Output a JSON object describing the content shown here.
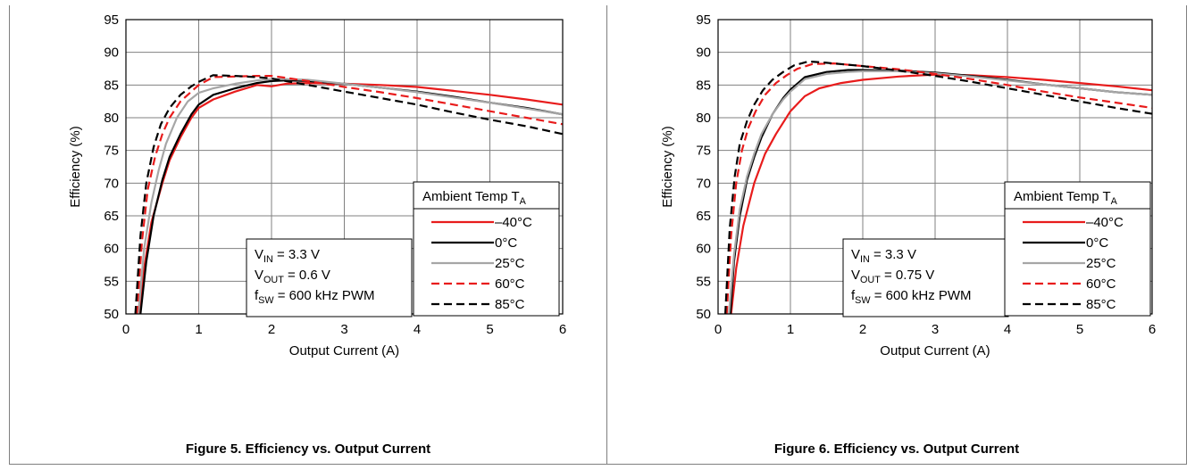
{
  "chart_data": [
    {
      "type": "line",
      "figure_caption": "Figure 5. Efficiency vs. Output Current",
      "xlabel": "Output Current (A)",
      "ylabel": "Efficiency (%)",
      "xlim": [
        0,
        6
      ],
      "ylim": [
        50,
        95
      ],
      "xticks": [
        "0",
        "1",
        "2",
        "3",
        "4",
        "5",
        "6"
      ],
      "yticks": [
        "50",
        "55",
        "60",
        "65",
        "70",
        "75",
        "80",
        "85",
        "90",
        "95"
      ],
      "grid": true,
      "legend_title": "Ambient Temp T",
      "legend_title_sub": "A",
      "legend_position": "bottom-right",
      "conditions": [
        {
          "main": "V",
          "sub": "IN",
          "rest": " = 3.3 V"
        },
        {
          "main": "V",
          "sub": "OUT",
          "rest": " = 0.6 V"
        },
        {
          "main": "f",
          "sub": "SW",
          "rest": " = 600 kHz PWM"
        }
      ],
      "series": [
        {
          "name": "–40°C",
          "color": "#e81c1c",
          "dash": "solid",
          "x": [
            0.18,
            0.25,
            0.35,
            0.5,
            0.6,
            0.75,
            0.9,
            1.0,
            1.2,
            1.5,
            1.8,
            2.0,
            2.2,
            2.5,
            3.0,
            3.5,
            4.0,
            4.5,
            5.0,
            5.5,
            6.0
          ],
          "y": [
            50,
            57,
            64,
            70,
            73.5,
            77,
            80,
            81.5,
            82.8,
            84,
            85,
            84.8,
            85.2,
            85.3,
            85.2,
            85,
            84.7,
            84.1,
            83.5,
            82.8,
            82
          ]
        },
        {
          "name": "0°C",
          "color": "#000000",
          "dash": "solid",
          "x": [
            0.2,
            0.28,
            0.38,
            0.5,
            0.6,
            0.75,
            0.9,
            1.0,
            1.2,
            1.5,
            1.8,
            2.0,
            2.2,
            2.5,
            3.0,
            3.5,
            4.0,
            4.5,
            5.0,
            5.5,
            6.0
          ],
          "y": [
            50,
            58,
            65,
            70.5,
            74,
            77.5,
            80.5,
            82,
            83.5,
            84.5,
            85.3,
            85.6,
            85.7,
            85.6,
            85.2,
            84.6,
            84,
            83.2,
            82.3,
            81.5,
            80.5
          ]
        },
        {
          "name": "25°C",
          "color": "#a6a6a6",
          "dash": "solid",
          "x": [
            0.17,
            0.25,
            0.35,
            0.45,
            0.55,
            0.7,
            0.85,
            1.0,
            1.2,
            1.5,
            1.8,
            2.0,
            2.2,
            2.5,
            3.0,
            3.5,
            4.0,
            4.5,
            5.0,
            5.5,
            6.0
          ],
          "y": [
            50,
            60,
            67,
            72,
            76,
            80,
            82.5,
            83.8,
            84.5,
            85.2,
            85.7,
            85.9,
            85.9,
            85.8,
            85.2,
            84.6,
            83.9,
            83.1,
            82.3,
            81.4,
            80.5
          ]
        },
        {
          "name": "60°C",
          "color": "#e81c1c",
          "dash": "dashed",
          "x": [
            0.15,
            0.22,
            0.3,
            0.4,
            0.5,
            0.6,
            0.75,
            0.9,
            1.0,
            1.2,
            1.5,
            1.8,
            2.0,
            2.2,
            2.5,
            3.0,
            3.5,
            4.0,
            4.5,
            5.0,
            5.5,
            6.0
          ],
          "y": [
            50,
            61,
            69,
            74,
            77.5,
            80,
            82.5,
            84,
            85,
            86.2,
            86.3,
            86.4,
            86.4,
            86.1,
            85.6,
            84.7,
            83.9,
            83,
            82,
            81,
            80,
            79
          ]
        },
        {
          "name": "85°C",
          "color": "#000000",
          "dash": "dashed",
          "x": [
            0.13,
            0.2,
            0.28,
            0.38,
            0.48,
            0.6,
            0.75,
            0.9,
            1.0,
            1.2,
            1.5,
            1.8,
            2.0,
            2.2,
            2.5,
            3.0,
            3.5,
            4.0,
            4.5,
            5.0,
            5.5,
            6.0
          ],
          "y": [
            50,
            62,
            70,
            75.5,
            79,
            81.5,
            83.5,
            84.8,
            85.5,
            86.5,
            86.4,
            86.2,
            86,
            85.6,
            85,
            84,
            83,
            82,
            80.8,
            79.7,
            78.7,
            77.5
          ]
        }
      ]
    },
    {
      "type": "line",
      "figure_caption": "Figure 6. Efficiency vs. Output Current",
      "xlabel": "Output Current (A)",
      "ylabel": "Efficiency (%)",
      "xlim": [
        0,
        6
      ],
      "ylim": [
        50,
        95
      ],
      "xticks": [
        "0",
        "1",
        "2",
        "3",
        "4",
        "5",
        "6"
      ],
      "yticks": [
        "50",
        "55",
        "60",
        "65",
        "70",
        "75",
        "80",
        "85",
        "90",
        "95"
      ],
      "grid": true,
      "legend_title": "Ambient Temp T",
      "legend_title_sub": "A",
      "legend_position": "bottom-right",
      "conditions": [
        {
          "main": "V",
          "sub": "IN",
          "rest": " = 3.3 V"
        },
        {
          "main": "V",
          "sub": "OUT",
          "rest": " = 0.75 V"
        },
        {
          "main": "f",
          "sub": "SW",
          "rest": " = 600 kHz PWM"
        }
      ],
      "series": [
        {
          "name": "–40°C",
          "color": "#e81c1c",
          "dash": "solid",
          "x": [
            0.18,
            0.25,
            0.35,
            0.5,
            0.65,
            0.8,
            1.0,
            1.2,
            1.4,
            1.7,
            2.0,
            2.5,
            3.0,
            3.5,
            4.0,
            4.5,
            5.0,
            5.5,
            6.0
          ],
          "y": [
            50,
            57,
            63.5,
            70,
            74.5,
            77.5,
            81,
            83.3,
            84.5,
            85.3,
            85.8,
            86.3,
            86.6,
            86.5,
            86.2,
            85.8,
            85.3,
            84.8,
            84.2
          ]
        },
        {
          "name": "0°C",
          "color": "#000000",
          "dash": "solid",
          "x": [
            0.17,
            0.22,
            0.3,
            0.4,
            0.5,
            0.6,
            0.75,
            0.9,
            1.0,
            1.2,
            1.5,
            1.8,
            2.0,
            2.5,
            3.0,
            3.5,
            4.0,
            4.5,
            5.0,
            5.5,
            6.0
          ],
          "y": [
            50,
            58,
            65,
            70.5,
            74,
            77,
            80.5,
            83,
            84.3,
            86.2,
            87,
            87.3,
            87.3,
            87.2,
            86.9,
            86.4,
            85.8,
            85.1,
            84.5,
            83.9,
            83.5
          ]
        },
        {
          "name": "25°C",
          "color": "#a6a6a6",
          "dash": "solid",
          "x": [
            0.15,
            0.22,
            0.3,
            0.4,
            0.5,
            0.6,
            0.75,
            0.9,
            1.0,
            1.2,
            1.5,
            1.8,
            2.0,
            2.5,
            3.0,
            3.5,
            4.0,
            4.5,
            5.0,
            5.5,
            6.0
          ],
          "y": [
            50,
            59,
            66,
            71,
            74.5,
            77.5,
            80.5,
            82.8,
            84,
            85.9,
            86.7,
            87,
            87.1,
            87.1,
            86.8,
            86.3,
            85.7,
            85.1,
            84.5,
            83.9,
            83.5
          ]
        },
        {
          "name": "60°C",
          "color": "#e81c1c",
          "dash": "dashed",
          "x": [
            0.12,
            0.18,
            0.25,
            0.33,
            0.42,
            0.52,
            0.65,
            0.8,
            0.95,
            1.1,
            1.3,
            1.6,
            2.0,
            2.5,
            3.0,
            3.5,
            4.0,
            4.5,
            5.0,
            5.5,
            6.0
          ],
          "y": [
            50,
            62,
            70,
            75,
            78.5,
            81,
            83.5,
            85.3,
            86.5,
            87.5,
            88.2,
            88.3,
            87.9,
            87.4,
            86.7,
            85.9,
            85,
            84,
            83.1,
            82.3,
            81.5
          ]
        },
        {
          "name": "85°C",
          "color": "#000000",
          "dash": "dashed",
          "x": [
            0.1,
            0.16,
            0.23,
            0.3,
            0.4,
            0.5,
            0.62,
            0.75,
            0.9,
            1.05,
            1.25,
            1.5,
            2.0,
            2.5,
            3.0,
            3.5,
            4.0,
            4.5,
            5.0,
            5.5,
            6.0
          ],
          "y": [
            50,
            63,
            71,
            76,
            79.5,
            82,
            84.2,
            85.8,
            87,
            88,
            88.6,
            88.4,
            87.9,
            87.2,
            86.4,
            85.5,
            84.5,
            83.5,
            82.5,
            81.5,
            80.6
          ]
        }
      ]
    }
  ]
}
